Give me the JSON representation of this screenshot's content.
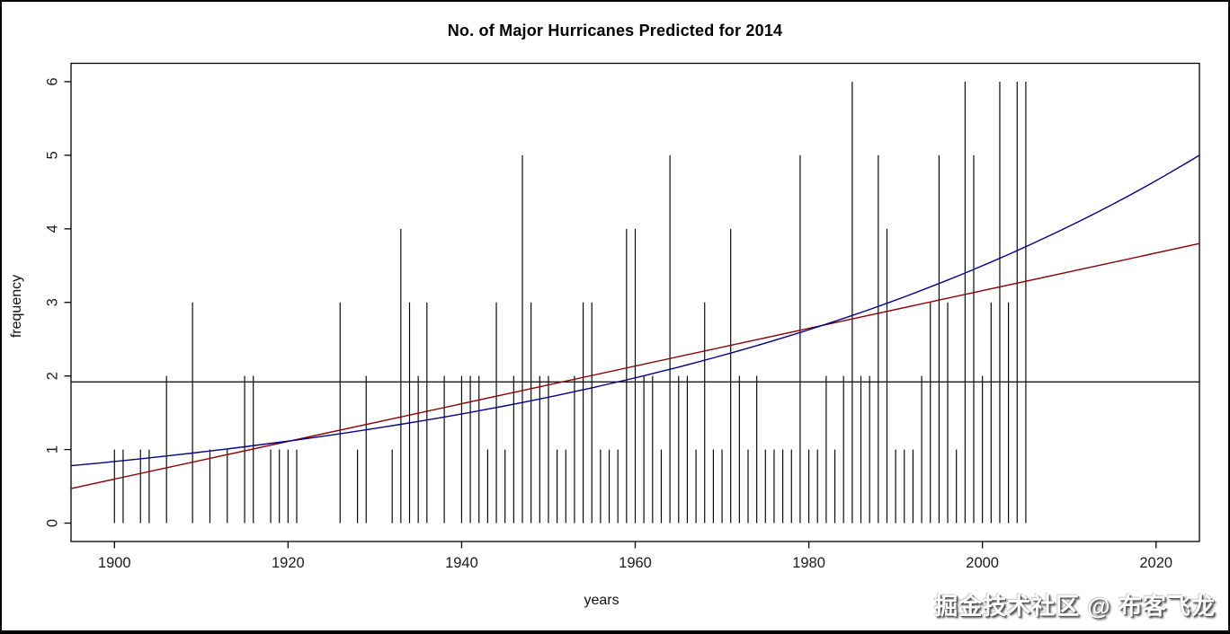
{
  "watermark": "掘金技术社区 @ 布客飞龙",
  "chart_data": {
    "type": "bar",
    "style": "needle",
    "title": "No. of Major Hurricanes Predicted for 2014",
    "xlabel": "years",
    "ylabel": "frequency",
    "xlim": [
      1895,
      2025
    ],
    "ylim": [
      -0.25,
      6.25
    ],
    "x_ticks": [
      1900,
      1920,
      1940,
      1960,
      1980,
      2000,
      2020
    ],
    "y_ticks": [
      0,
      1,
      2,
      3,
      4,
      5,
      6
    ],
    "grid": "off",
    "bar_color": "#000000",
    "axis_color": "#000000",
    "years": [
      1900,
      1901,
      1902,
      1903,
      1904,
      1905,
      1906,
      1907,
      1908,
      1909,
      1910,
      1911,
      1912,
      1913,
      1914,
      1915,
      1916,
      1917,
      1918,
      1919,
      1920,
      1921,
      1922,
      1923,
      1924,
      1925,
      1926,
      1927,
      1928,
      1929,
      1930,
      1931,
      1932,
      1933,
      1934,
      1935,
      1936,
      1937,
      1938,
      1939,
      1940,
      1941,
      1942,
      1943,
      1944,
      1945,
      1946,
      1947,
      1948,
      1949,
      1950,
      1951,
      1952,
      1953,
      1954,
      1955,
      1956,
      1957,
      1958,
      1959,
      1960,
      1961,
      1962,
      1963,
      1964,
      1965,
      1966,
      1967,
      1968,
      1969,
      1970,
      1971,
      1972,
      1973,
      1974,
      1975,
      1976,
      1977,
      1978,
      1979,
      1980,
      1981,
      1982,
      1983,
      1984,
      1985,
      1986,
      1987,
      1988,
      1989,
      1990,
      1991,
      1992,
      1993,
      1994,
      1995,
      1996,
      1997,
      1998,
      1999,
      2000,
      2001,
      2002,
      2003,
      2004,
      2005
    ],
    "values": [
      1,
      1,
      0,
      1,
      1,
      0,
      2,
      0,
      0,
      3,
      0,
      1,
      0,
      1,
      0,
      2,
      2,
      0,
      1,
      1,
      1,
      1,
      0,
      0,
      0,
      0,
      3,
      0,
      1,
      2,
      0,
      0,
      1,
      4,
      3,
      2,
      3,
      0,
      2,
      0,
      2,
      2,
      2,
      1,
      3,
      1,
      2,
      5,
      3,
      2,
      2,
      1,
      1,
      2,
      3,
      3,
      1,
      1,
      1,
      4,
      4,
      2,
      2,
      1,
      5,
      2,
      2,
      1,
      3,
      1,
      1,
      4,
      2,
      1,
      2,
      1,
      1,
      1,
      1,
      5,
      1,
      1,
      2,
      1,
      2,
      6,
      2,
      2,
      5,
      4,
      1,
      1,
      1,
      2,
      3,
      5,
      3,
      1,
      6,
      5,
      2,
      3,
      6,
      3,
      6,
      6
    ],
    "mean_line": 1.92,
    "fits": [
      {
        "name": "linear-fit",
        "type": "linear",
        "color": "#8B0000",
        "x": [
          1895,
          2025
        ],
        "y": [
          0.47,
          3.8
        ]
      },
      {
        "name": "exponential-fit",
        "type": "exponential",
        "color": "#00008B",
        "x": [
          1895,
          2025
        ],
        "y": [
          0.78,
          5.0
        ]
      }
    ],
    "prediction_year": 2014
  }
}
